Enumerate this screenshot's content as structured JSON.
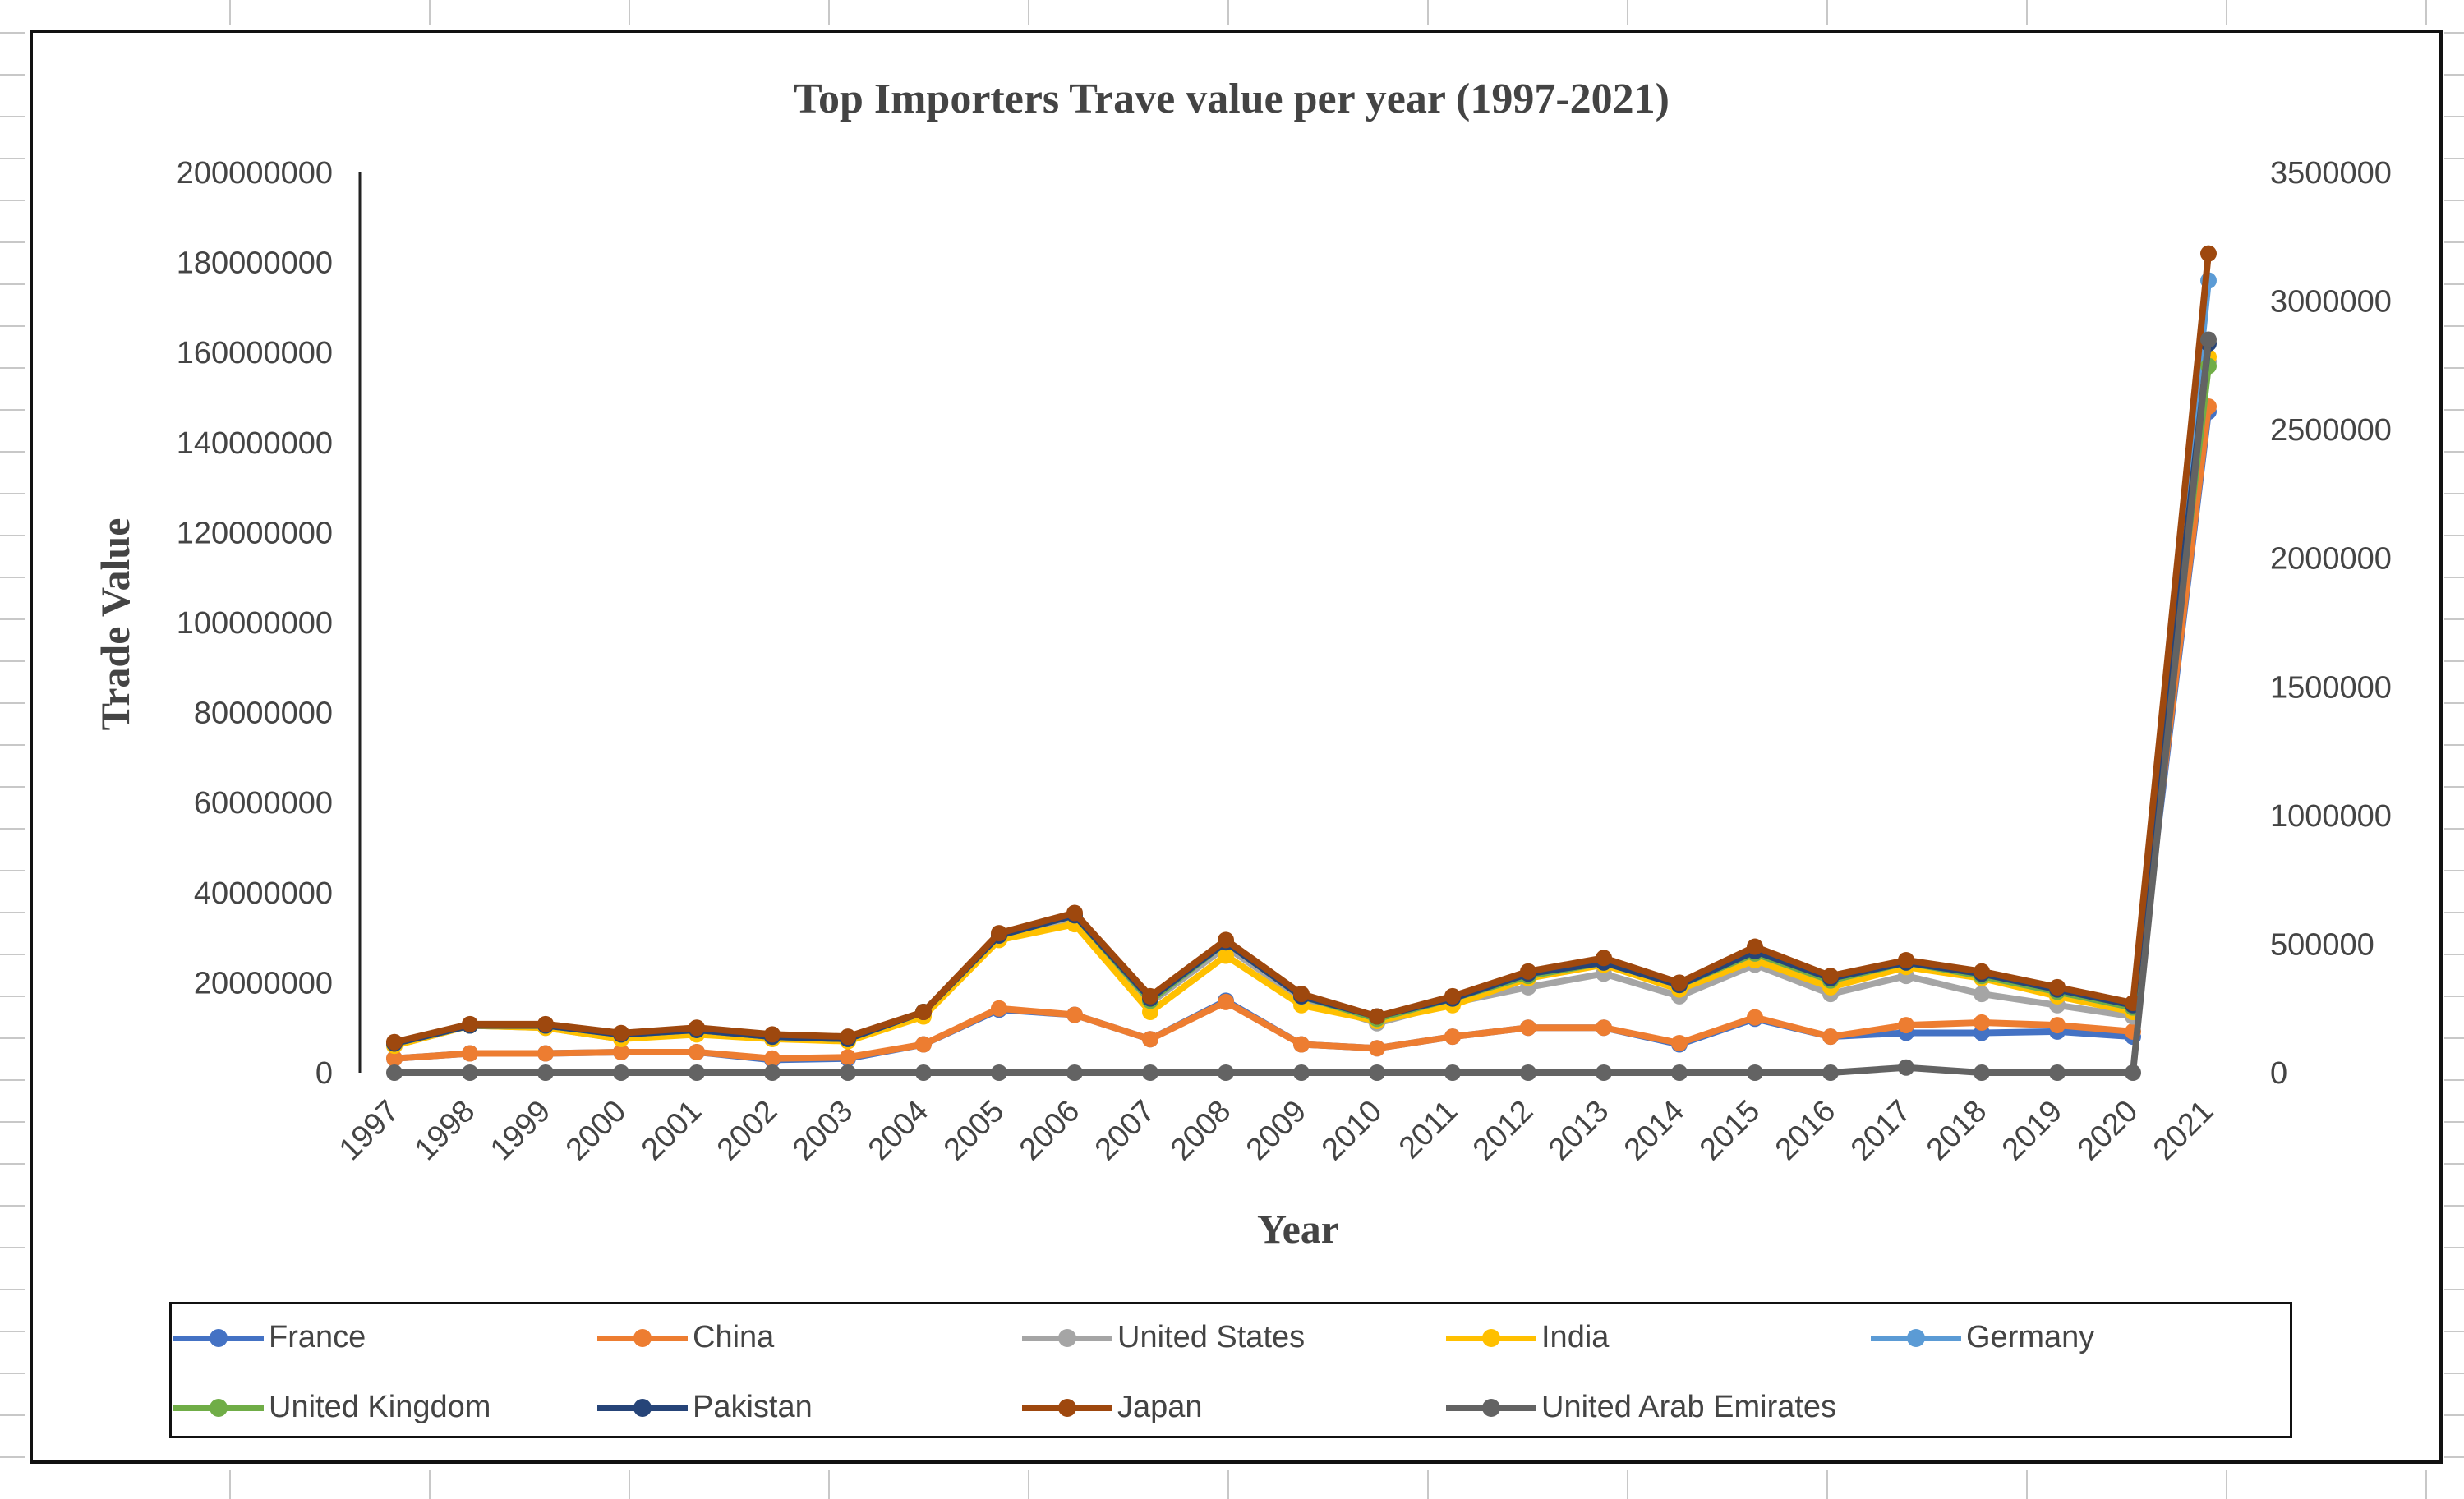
{
  "chart_data": {
    "type": "line",
    "title": "Top Importers Trave value per year (1997-2021)",
    "xlabel": "Year",
    "ylabel": "Trade Value",
    "ylim": [
      0,
      200000000
    ],
    "y_ticks": [
      "0",
      "20000000",
      "40000000",
      "60000000",
      "80000000",
      "100000000",
      "120000000",
      "140000000",
      "160000000",
      "180000000",
      "200000000"
    ],
    "y2lim": [
      0,
      3500000
    ],
    "y2_ticks": [
      "0",
      "500000",
      "1000000",
      "1500000",
      "2000000",
      "2500000",
      "3000000",
      "3500000"
    ],
    "categories": [
      "1997",
      "1998",
      "1999",
      "2000",
      "2001",
      "2002",
      "2003",
      "2004",
      "2005",
      "2006",
      "2007",
      "2008",
      "2009",
      "2010",
      "2011",
      "2012",
      "2013",
      "2014",
      "2015",
      "2016",
      "2017",
      "2018",
      "2019",
      "2020",
      "2021"
    ],
    "series": [
      {
        "name": "France",
        "color": "#4472C4",
        "axis": "secondary",
        "values": [
          55000,
          75000,
          75000,
          80000,
          80000,
          50000,
          55000,
          110000,
          245000,
          225000,
          130000,
          280000,
          110000,
          95000,
          140000,
          175000,
          175000,
          110000,
          210000,
          140000,
          155000,
          155000,
          160000,
          140000,
          2570000
        ]
      },
      {
        "name": "China",
        "color": "#ED7D31",
        "axis": "secondary",
        "values": [
          55000,
          75000,
          75000,
          80000,
          80000,
          55000,
          60000,
          110000,
          250000,
          225000,
          130000,
          275000,
          110000,
          95000,
          140000,
          175000,
          175000,
          115000,
          215000,
          140000,
          185000,
          195000,
          185000,
          160000,
          2590000
        ]
      },
      {
        "name": "United States",
        "color": "#A5A5A5",
        "axis": "primary",
        "values": [
          6000000,
          10500000,
          10000000,
          7500000,
          9500000,
          7500000,
          7500000,
          13000000,
          30000000,
          34000000,
          15500000,
          28000000,
          16500000,
          11000000,
          15500000,
          19000000,
          22000000,
          17000000,
          24000000,
          17500000,
          21500000,
          17500000,
          15000000,
          12500000,
          158000000
        ]
      },
      {
        "name": "India",
        "color": "#FFC000",
        "axis": "primary",
        "values": [
          6000000,
          10500000,
          10000000,
          7500000,
          8500000,
          7500000,
          7000000,
          12500000,
          29500000,
          33000000,
          13500000,
          26000000,
          15000000,
          11500000,
          15000000,
          21000000,
          24000000,
          18500000,
          25000000,
          19000000,
          23500000,
          21000000,
          17000000,
          13500000,
          159000000
        ]
      },
      {
        "name": "Germany",
        "color": "#5B9BD5",
        "axis": "primary",
        "values": [
          6500000,
          10500000,
          10500000,
          8500000,
          9500000,
          8000000,
          7500000,
          13500000,
          30500000,
          35000000,
          16000000,
          29000000,
          17000000,
          12000000,
          16500000,
          21500000,
          24500000,
          19500000,
          26500000,
          20500000,
          24500000,
          21500000,
          18000000,
          14500000,
          176000000
        ]
      },
      {
        "name": "United Kingdom",
        "color": "#70AD47",
        "axis": "primary",
        "values": [
          6500000,
          10500000,
          10500000,
          8500000,
          9500000,
          8000000,
          7500000,
          13500000,
          30500000,
          35000000,
          16000000,
          29000000,
          17000000,
          12000000,
          16500000,
          21500000,
          24500000,
          19500000,
          26500000,
          20500000,
          24500000,
          21500000,
          18000000,
          14500000,
          157000000
        ]
      },
      {
        "name": "Pakistan",
        "color": "#264478",
        "axis": "primary",
        "values": [
          6500000,
          10500000,
          10500000,
          8500000,
          9500000,
          8000000,
          7500000,
          13500000,
          30500000,
          35000000,
          16500000,
          29000000,
          17000000,
          12500000,
          16500000,
          22000000,
          24500000,
          19500000,
          27000000,
          21000000,
          24500000,
          22000000,
          18500000,
          15000000,
          162000000
        ]
      },
      {
        "name": "Japan",
        "color": "#9E480E",
        "axis": "primary",
        "values": [
          6800000,
          10800000,
          10800000,
          8800000,
          10000000,
          8500000,
          8000000,
          13500000,
          31000000,
          35500000,
          17000000,
          29500000,
          17500000,
          12500000,
          17000000,
          22500000,
          25500000,
          20000000,
          28000000,
          21500000,
          25000000,
          22500000,
          19000000,
          15500000,
          182000000
        ]
      },
      {
        "name": "United Arab Emirates",
        "color": "#636363",
        "axis": "secondary",
        "values": [
          0,
          0,
          0,
          0,
          0,
          0,
          0,
          0,
          0,
          0,
          0,
          0,
          0,
          0,
          0,
          0,
          0,
          0,
          0,
          0,
          20000,
          0,
          0,
          0,
          2850000
        ]
      }
    ]
  }
}
